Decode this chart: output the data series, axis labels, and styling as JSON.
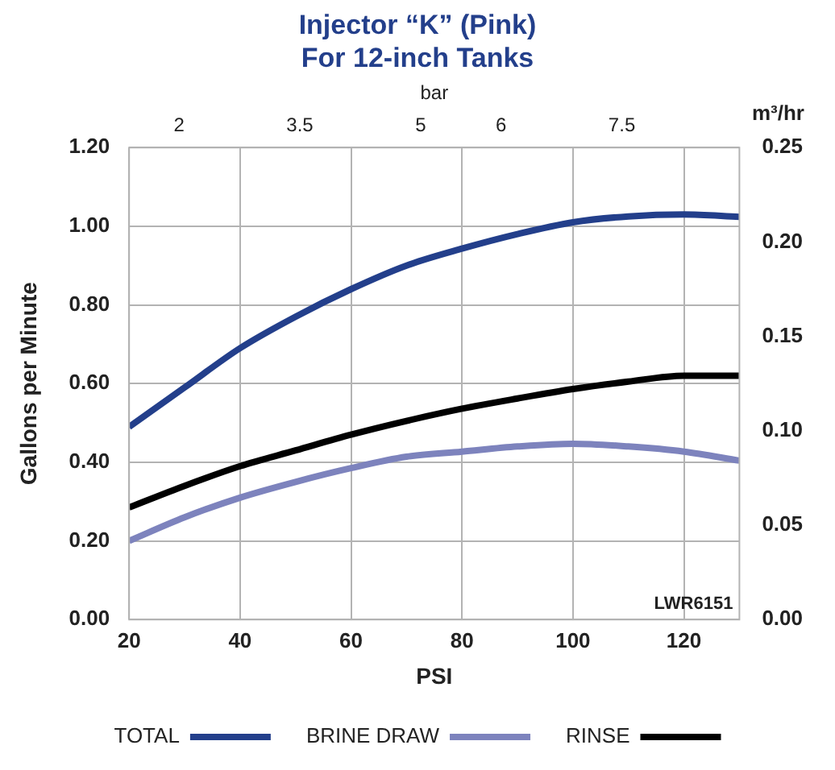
{
  "chart_data": {
    "type": "line",
    "title": "Injector “K” (Pink)\nFor 12-inch Tanks",
    "xlabel": "PSI",
    "ylabel": "Gallons per Minute",
    "x2label": "bar",
    "y2label": "m³/hr",
    "x": [
      20,
      30,
      40,
      50,
      60,
      70,
      80,
      90,
      100,
      110,
      120,
      130
    ],
    "series": [
      {
        "name": "TOTAL",
        "color": "#233f8b",
        "values": [
          0.49,
          0.59,
          0.69,
          0.77,
          0.84,
          0.9,
          0.943,
          0.98,
          1.01,
          1.025,
          1.03,
          1.024
        ]
      },
      {
        "name": "BRINE DRAW",
        "color": "#7d83bd",
        "values": [
          0.2,
          0.26,
          0.31,
          0.35,
          0.385,
          0.414,
          0.427,
          0.44,
          0.447,
          0.44,
          0.427,
          0.404
        ]
      },
      {
        "name": "RINSE",
        "color": "#000000",
        "values": [
          0.285,
          0.34,
          0.39,
          0.43,
          0.47,
          0.505,
          0.536,
          0.562,
          0.586,
          0.605,
          0.62,
          0.62
        ]
      }
    ],
    "xlim": [
      20,
      130
    ],
    "xticks": [
      20,
      40,
      60,
      80,
      100,
      120
    ],
    "x2lim": [
      1.38,
      8.96
    ],
    "x2ticks": [
      2,
      3.5,
      5,
      6,
      7.5
    ],
    "ylim": [
      0,
      1.2
    ],
    "yticks": [
      {
        "value": 0,
        "label": "0.00"
      },
      {
        "value": 0.2,
        "label": "0.20"
      },
      {
        "value": 0.4,
        "label": "0.40"
      },
      {
        "value": 0.6,
        "label": "0.60"
      },
      {
        "value": 0.8,
        "label": "0.80"
      },
      {
        "value": 1,
        "label": "1.00"
      },
      {
        "value": 1.2,
        "label": "1.20"
      }
    ],
    "y2lim": [
      0,
      0.25
    ],
    "y2ticks": [
      {
        "value": 0,
        "label": "0.00"
      },
      {
        "value": 0.05,
        "label": "0.05"
      },
      {
        "value": 0.1,
        "label": "0.10"
      },
      {
        "value": 0.15,
        "label": "0.15"
      },
      {
        "value": 0.2,
        "label": "0.20"
      },
      {
        "value": 0.25,
        "label": "0.25"
      }
    ],
    "annotations": [
      "LWR6151"
    ],
    "grid": true,
    "legend": "bottom",
    "marker": "none",
    "line_style": "solid"
  }
}
